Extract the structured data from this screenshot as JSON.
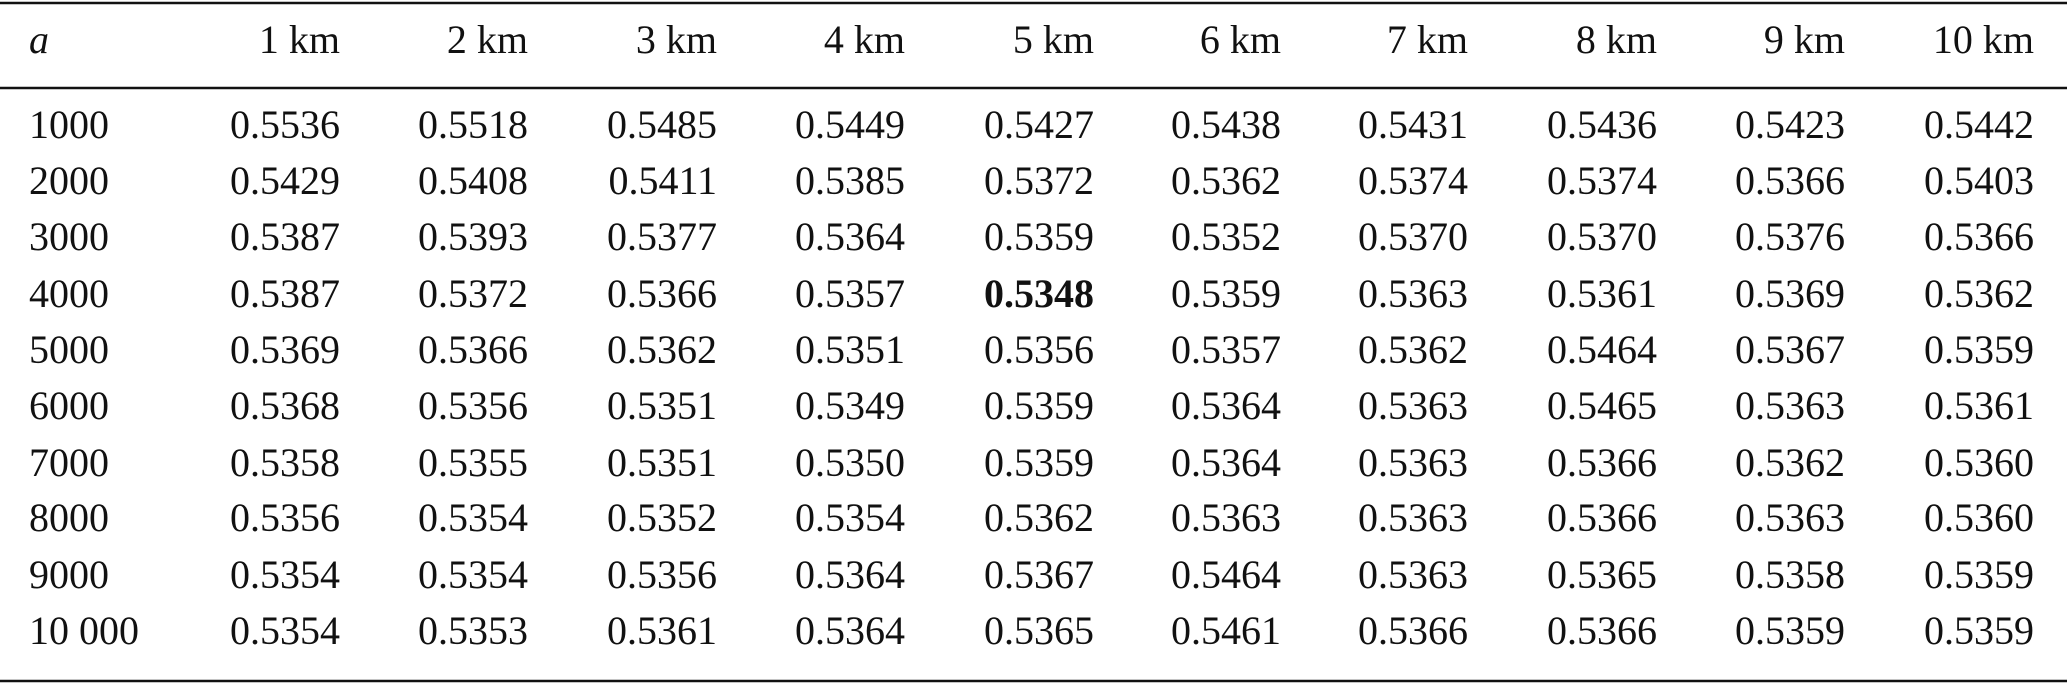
{
  "table": {
    "header": [
      "a",
      "1 km",
      "2 km",
      "3 km",
      "4 km",
      "5 km",
      "6 km",
      "7 km",
      "8 km",
      "9 km",
      "10 km"
    ],
    "rows": [
      [
        "1000",
        "0.5536",
        "0.5518",
        "0.5485",
        "0.5449",
        "0.5427",
        "0.5438",
        "0.5431",
        "0.5436",
        "0.5423",
        "0.5442"
      ],
      [
        "2000",
        "0.5429",
        "0.5408",
        "0.5411",
        "0.5385",
        "0.5372",
        "0.5362",
        "0.5374",
        "0.5374",
        "0.5366",
        "0.5403"
      ],
      [
        "3000",
        "0.5387",
        "0.5393",
        "0.5377",
        "0.5364",
        "0.5359",
        "0.5352",
        "0.5370",
        "0.5370",
        "0.5376",
        "0.5366"
      ],
      [
        "4000",
        "0.5387",
        "0.5372",
        "0.5366",
        "0.5357",
        "0.5348",
        "0.5359",
        "0.5363",
        "0.5361",
        "0.5369",
        "0.5362"
      ],
      [
        "5000",
        "0.5369",
        "0.5366",
        "0.5362",
        "0.5351",
        "0.5356",
        "0.5357",
        "0.5362",
        "0.5464",
        "0.5367",
        "0.5359"
      ],
      [
        "6000",
        "0.5368",
        "0.5356",
        "0.5351",
        "0.5349",
        "0.5359",
        "0.5364",
        "0.5363",
        "0.5465",
        "0.5363",
        "0.5361"
      ],
      [
        "7000",
        "0.5358",
        "0.5355",
        "0.5351",
        "0.5350",
        "0.5359",
        "0.5364",
        "0.5363",
        "0.5366",
        "0.5362",
        "0.5360"
      ],
      [
        "8000",
        "0.5356",
        "0.5354",
        "0.5352",
        "0.5354",
        "0.5362",
        "0.5363",
        "0.5363",
        "0.5366",
        "0.5363",
        "0.5360"
      ],
      [
        "9000",
        "0.5354",
        "0.5354",
        "0.5356",
        "0.5364",
        "0.5367",
        "0.5464",
        "0.5363",
        "0.5365",
        "0.5358",
        "0.5359"
      ],
      [
        "10 000",
        "0.5354",
        "0.5353",
        "0.5361",
        "0.5364",
        "0.5365",
        "0.5461",
        "0.5366",
        "0.5366",
        "0.5359",
        "0.5359"
      ]
    ],
    "bold_cell": {
      "row": 3,
      "col": 5
    }
  }
}
